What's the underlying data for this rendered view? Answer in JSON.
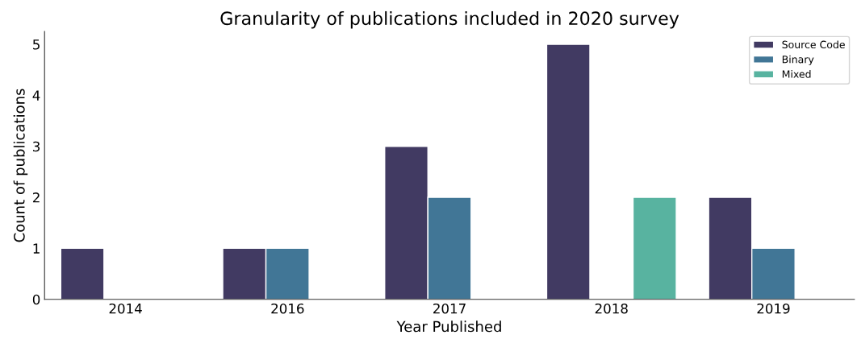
{
  "chart_data": {
    "type": "bar",
    "title": "Granularity of publications included in 2020 survey",
    "xlabel": "Year Published",
    "ylabel": "Count of publications",
    "categories": [
      "2014",
      "2016",
      "2017",
      "2018",
      "2019"
    ],
    "series": [
      {
        "name": "Source Code",
        "color": "#413a62",
        "values": [
          1,
          1,
          3,
          5,
          2
        ]
      },
      {
        "name": "Binary",
        "color": "#417696",
        "values": [
          null,
          1,
          2,
          null,
          1
        ]
      },
      {
        "name": "Mixed",
        "color": "#58b3a0",
        "values": [
          null,
          null,
          null,
          2,
          null
        ]
      }
    ],
    "ylim": [
      0,
      5.25
    ],
    "yticks": [
      0,
      1,
      2,
      3,
      4,
      5
    ],
    "grid": false,
    "legend": "top right"
  }
}
